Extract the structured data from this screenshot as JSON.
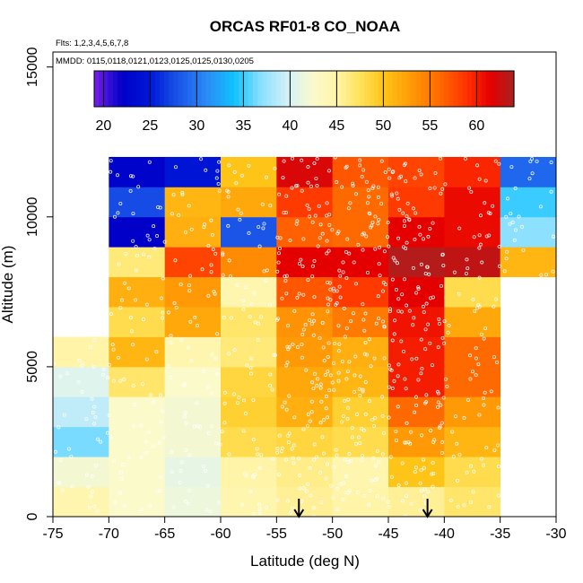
{
  "chart_data": {
    "type": "heatmap",
    "title": "ORCAS RF01-8 CO_NOAA",
    "flights_note": "Flts: 1,2,3,4,5,6,7,8",
    "dates_note": "MMDD: 0115,0118,0121,0123,0125,0125,0130,0205",
    "xlabel": "Latitude (deg N)",
    "ylabel": "Altitude (m)",
    "xlim": [
      -75,
      -30
    ],
    "ylim": [
      0,
      15500
    ],
    "x_ticks": [
      -75,
      -70,
      -65,
      -60,
      -55,
      -50,
      -45,
      -40,
      -35,
      -30
    ],
    "x_tick_labels": [
      "-75",
      "-70",
      "-65",
      "-60",
      "-55",
      "-50",
      "-45",
      "-40",
      "-35",
      "-30"
    ],
    "y_ticks": [
      0,
      5000,
      10000,
      15000
    ],
    "y_tick_labels": [
      "0",
      "5000",
      "10000",
      "15000"
    ],
    "colorbar": {
      "min": 19,
      "max": 64,
      "ticks": [
        20,
        25,
        30,
        35,
        40,
        45,
        50,
        55,
        60
      ],
      "tick_labels": [
        "20",
        "25",
        "30",
        "35",
        "40",
        "45",
        "50",
        "55",
        "60"
      ],
      "stops": [
        {
          "v": 19,
          "c": "#7a1ee8"
        },
        {
          "v": 20.5,
          "c": "#3a10d8"
        },
        {
          "v": 22,
          "c": "#0000c8"
        },
        {
          "v": 25,
          "c": "#0018d8"
        },
        {
          "v": 28,
          "c": "#1a55e8"
        },
        {
          "v": 31,
          "c": "#2a8af5"
        },
        {
          "v": 34,
          "c": "#10c2ff"
        },
        {
          "v": 37,
          "c": "#8ee0ff"
        },
        {
          "v": 40,
          "c": "#d8f2f5"
        },
        {
          "v": 42.5,
          "c": "#fafaca"
        },
        {
          "v": 45,
          "c": "#fff4a8"
        },
        {
          "v": 47.5,
          "c": "#ffe25a"
        },
        {
          "v": 50,
          "c": "#ffc418"
        },
        {
          "v": 53,
          "c": "#ff9a06"
        },
        {
          "v": 56,
          "c": "#ff6a00"
        },
        {
          "v": 59,
          "c": "#ff3000"
        },
        {
          "v": 61.5,
          "c": "#e50000"
        },
        {
          "v": 64,
          "c": "#a82222"
        }
      ]
    },
    "lat_bins": [
      -75,
      -70,
      -65,
      -60,
      -55,
      -50,
      -45,
      -40,
      -35,
      -30
    ],
    "alt_bins": [
      0,
      1000,
      2000,
      3000,
      4000,
      5000,
      6000,
      7000,
      8000,
      9000,
      10000,
      11000,
      12000
    ],
    "cells_note": "rows from 0 m upward, columns from -75 westward to -30; null = no data",
    "cells": [
      [
        44.5,
        42.5,
        41.5,
        44.5,
        45.5,
        45,
        45.5,
        47,
        null
      ],
      [
        42,
        42.5,
        41,
        45,
        46,
        44.5,
        50,
        48,
        null
      ],
      [
        36.5,
        42.5,
        42,
        48,
        48.5,
        48,
        53,
        51,
        null
      ],
      [
        39,
        42.5,
        42,
        49,
        51.5,
        49,
        56,
        53,
        null
      ],
      [
        40.5,
        47,
        42.5,
        48.5,
        52,
        51,
        60,
        56,
        null
      ],
      [
        45,
        51,
        44.5,
        46.5,
        53,
        51.5,
        60,
        56,
        null
      ],
      [
        null,
        48,
        52,
        47,
        53.5,
        55,
        60.5,
        52,
        null
      ],
      [
        null,
        51.5,
        53,
        44.5,
        57,
        58.5,
        61.5,
        48,
        null
      ],
      [
        null,
        46.5,
        58,
        54,
        61.5,
        61.5,
        63.5,
        63,
        51
      ],
      [
        null,
        22,
        51.5,
        28,
        56.5,
        56,
        61.5,
        61,
        37
      ],
      [
        null,
        27.5,
        51,
        52,
        58.5,
        56,
        58.5,
        61,
        35
      ],
      [
        null,
        22.5,
        24.5,
        50,
        62,
        57,
        58,
        59.5,
        29
      ]
    ],
    "arrow_markers_lat": [
      -53,
      -41.5
    ],
    "sample_point_color": "#ffffff"
  }
}
